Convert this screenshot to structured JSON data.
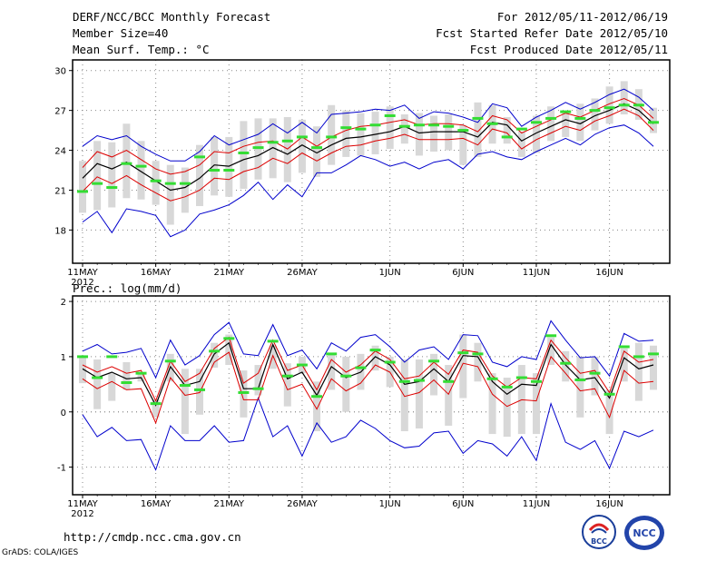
{
  "header": {
    "title": "DERF/NCC/BCC Monthly Forecast",
    "member_size": "Member Size=40",
    "variable": "Mean Surf. Temp.: °C",
    "period": "For 2012/05/11-2012/06/19",
    "fcst_started": "Fcst Started Refer Date 2012/05/10",
    "fcst_produced": "Fcst Produced Date 2012/05/11"
  },
  "footer": {
    "url": "http://cmdp.ncc.cma.gov.cn",
    "grads": "GrADS: COLA/IGES",
    "logo_bcc": "BCC",
    "logo_ncc": "NCC"
  },
  "colors": {
    "envelope": "#0000cc",
    "spread": "#dd0000",
    "mean": "#000000",
    "bar": "#d8d8d8",
    "obs": "#33dd33",
    "grid": "#888888"
  },
  "chart_data": [
    {
      "type": "line",
      "title": "Mean Surf. Temp.: °C",
      "ylabel": "°C",
      "ylim": [
        15.5,
        30.8
      ],
      "yticks": [
        18,
        21,
        24,
        27,
        30
      ],
      "xlim": [
        0,
        39
      ],
      "xticks": [
        {
          "day": 0,
          "label": "11MAY",
          "label2": "2012"
        },
        {
          "day": 5,
          "label": "16MAY"
        },
        {
          "day": 10,
          "label": "21MAY"
        },
        {
          "day": 15,
          "label": "26MAY"
        },
        {
          "day": 21,
          "label": "1JUN"
        },
        {
          "day": 26,
          "label": "6JUN"
        },
        {
          "day": 31,
          "label": "11JUN"
        },
        {
          "day": 36,
          "label": "16JUN"
        }
      ],
      "series": {
        "max": [
          24.3,
          25.1,
          24.8,
          25.1,
          24.3,
          23.7,
          23.2,
          23.2,
          23.9,
          25.1,
          24.4,
          24.8,
          25.2,
          26.0,
          25.3,
          26.1,
          25.3,
          26.7,
          26.8,
          26.9,
          27.1,
          27.0,
          27.4,
          26.4,
          26.9,
          26.8,
          26.5,
          26.1,
          27.5,
          27.2,
          25.8,
          26.5,
          27.0,
          27.6,
          27.1,
          27.6,
          28.2,
          28.6,
          28.0,
          27.0
        ],
        "p75": [
          22.7,
          23.9,
          23.5,
          24.0,
          23.3,
          22.6,
          22.2,
          22.4,
          22.9,
          23.9,
          23.8,
          24.3,
          24.6,
          24.7,
          24.1,
          25.0,
          24.3,
          25.0,
          25.5,
          25.8,
          25.9,
          26.1,
          26.3,
          25.9,
          26.0,
          26.0,
          25.9,
          25.4,
          26.6,
          26.3,
          25.3,
          25.8,
          26.3,
          26.8,
          26.5,
          27.0,
          27.5,
          27.9,
          27.4,
          26.4
        ],
        "mean": [
          21.9,
          23.0,
          22.6,
          23.1,
          22.4,
          21.7,
          21.0,
          21.2,
          21.9,
          22.9,
          22.8,
          23.3,
          23.6,
          24.2,
          23.7,
          24.4,
          23.8,
          24.4,
          24.9,
          25.0,
          25.2,
          25.4,
          25.8,
          25.3,
          25.4,
          25.4,
          25.4,
          25.0,
          26.1,
          25.9,
          24.7,
          25.3,
          25.8,
          26.3,
          26.0,
          26.6,
          27.0,
          27.5,
          27.0,
          26.0
        ],
        "p25": [
          20.9,
          22.0,
          21.5,
          22.1,
          21.4,
          20.8,
          20.2,
          20.5,
          21.0,
          21.9,
          21.8,
          22.4,
          22.7,
          23.4,
          23.0,
          23.8,
          23.2,
          23.8,
          24.3,
          24.4,
          24.7,
          24.9,
          25.2,
          24.8,
          24.8,
          24.8,
          24.9,
          24.4,
          25.6,
          25.3,
          24.1,
          24.8,
          25.3,
          25.8,
          25.5,
          26.2,
          26.6,
          27.1,
          26.6,
          25.5
        ],
        "min": [
          18.6,
          19.4,
          17.8,
          19.6,
          19.4,
          19.1,
          17.5,
          18.0,
          19.2,
          19.5,
          19.9,
          20.6,
          21.6,
          20.3,
          21.4,
          20.5,
          22.3,
          22.3,
          22.9,
          23.6,
          23.3,
          22.8,
          23.1,
          22.6,
          23.1,
          23.3,
          22.6,
          23.7,
          23.9,
          23.5,
          23.3,
          23.9,
          24.4,
          24.9,
          24.4,
          25.2,
          25.7,
          25.9,
          25.3,
          24.3
        ],
        "bar_low": [
          19.3,
          19.5,
          19.7,
          20.4,
          20.3,
          19.9,
          18.4,
          19.3,
          19.8,
          20.6,
          20.5,
          21.1,
          21.8,
          21.9,
          21.6,
          22.3,
          22.0,
          22.9,
          23.5,
          23.6,
          23.7,
          24.1,
          24.5,
          23.6,
          23.9,
          24.0,
          22.9,
          23.5,
          24.5,
          24.5,
          23.5,
          23.8,
          24.7,
          25.0,
          24.7,
          25.5,
          26.0,
          26.7,
          26.3,
          25.3
        ],
        "bar_high": [
          23.2,
          24.7,
          24.6,
          26.0,
          24.7,
          23.2,
          22.9,
          22.7,
          24.4,
          25.0,
          25.0,
          26.2,
          26.4,
          26.4,
          26.5,
          26.3,
          25.8,
          27.4,
          27.0,
          26.8,
          26.9,
          27.3,
          26.7,
          26.8,
          26.6,
          26.7,
          25.9,
          27.6,
          27.4,
          26.5,
          25.4,
          26.6,
          27.3,
          26.9,
          27.5,
          27.9,
          28.8,
          29.2,
          28.6,
          27.2
        ],
        "obs": [
          20.9,
          21.5,
          21.2,
          23.0,
          22.8,
          21.7,
          21.5,
          21.5,
          23.5,
          22.5,
          22.5,
          23.8,
          24.2,
          24.6,
          24.7,
          25.0,
          24.2,
          25.0,
          25.7,
          25.6,
          25.9,
          26.6,
          25.8,
          25.9,
          25.9,
          25.8,
          25.5,
          26.4,
          26.0,
          25.0,
          25.6,
          26.1,
          26.4,
          26.9,
          26.4,
          27.0,
          27.2,
          27.4,
          27.4,
          26.1
        ]
      }
    },
    {
      "type": "line",
      "title": "Prec.: log(mm/d)",
      "ylabel": "log(mm/d)",
      "ylim": [
        -1.5,
        2.1
      ],
      "yticks": [
        -1,
        0,
        1,
        2
      ],
      "xlim": [
        0,
        39
      ],
      "xticks": [
        {
          "day": 0,
          "label": "11MAY",
          "label2": "2012"
        },
        {
          "day": 5,
          "label": "16MAY"
        },
        {
          "day": 10,
          "label": "21MAY"
        },
        {
          "day": 15,
          "label": "26MAY"
        },
        {
          "day": 21,
          "label": "1JUN"
        },
        {
          "day": 26,
          "label": "6JUN"
        },
        {
          "day": 31,
          "label": "11JUN"
        },
        {
          "day": 36,
          "label": "16JUN"
        }
      ],
      "series": {
        "max": [
          1.1,
          1.22,
          1.05,
          1.08,
          1.15,
          0.62,
          1.3,
          0.85,
          1.02,
          1.4,
          1.62,
          1.05,
          1.02,
          1.58,
          1.02,
          1.12,
          0.78,
          1.25,
          1.1,
          1.35,
          1.4,
          1.18,
          0.9,
          1.12,
          1.18,
          0.95,
          1.4,
          1.38,
          0.9,
          0.82,
          1.0,
          0.95,
          1.65,
          1.3,
          0.98,
          1.0,
          0.65,
          1.42,
          1.28,
          1.3
        ],
        "p75": [
          0.85,
          0.72,
          0.82,
          0.7,
          0.75,
          0.2,
          0.92,
          0.55,
          0.7,
          1.15,
          1.35,
          0.52,
          0.7,
          1.3,
          0.75,
          0.85,
          0.4,
          0.95,
          0.72,
          0.85,
          1.1,
          0.95,
          0.6,
          0.65,
          0.9,
          0.68,
          1.12,
          1.08,
          0.65,
          0.45,
          0.62,
          0.6,
          1.3,
          0.98,
          0.7,
          0.75,
          0.35,
          1.1,
          0.9,
          0.95
        ],
        "mean": [
          0.78,
          0.62,
          0.72,
          0.6,
          0.62,
          0.12,
          0.82,
          0.48,
          0.55,
          1.05,
          1.25,
          0.42,
          0.42,
          1.22,
          0.6,
          0.72,
          0.3,
          0.82,
          0.62,
          0.72,
          1.0,
          0.85,
          0.5,
          0.55,
          0.78,
          0.55,
          1.02,
          1.0,
          0.55,
          0.32,
          0.5,
          0.48,
          1.22,
          0.85,
          0.58,
          0.62,
          0.25,
          0.98,
          0.78,
          0.85
        ],
        "p25": [
          0.6,
          0.42,
          0.55,
          0.4,
          0.42,
          -0.2,
          0.62,
          0.3,
          0.35,
          0.9,
          1.08,
          0.22,
          0.22,
          1.02,
          0.4,
          0.5,
          0.05,
          0.6,
          0.38,
          0.52,
          0.85,
          0.72,
          0.28,
          0.35,
          0.58,
          0.32,
          0.88,
          0.82,
          0.32,
          0.1,
          0.22,
          0.2,
          1.0,
          0.7,
          0.38,
          0.42,
          -0.1,
          0.75,
          0.52,
          0.55
        ],
        "min": [
          -0.05,
          -0.45,
          -0.28,
          -0.52,
          -0.5,
          -1.05,
          -0.25,
          -0.52,
          -0.52,
          -0.25,
          -0.55,
          -0.52,
          0.25,
          -0.45,
          -0.25,
          -0.8,
          -0.2,
          -0.55,
          -0.45,
          -0.15,
          -0.3,
          -0.52,
          -0.65,
          -0.62,
          -0.38,
          -0.35,
          -0.75,
          -0.52,
          -0.58,
          -0.8,
          -0.45,
          -0.88,
          0.15,
          -0.55,
          -0.68,
          -0.52,
          -1.02,
          -0.35,
          -0.45,
          -0.33
        ],
        "bar_low": [
          0.52,
          0.05,
          0.2,
          0.4,
          0.55,
          -0.1,
          0.55,
          -0.4,
          -0.05,
          0.8,
          0.85,
          -0.1,
          0.3,
          0.78,
          0.1,
          0.7,
          -0.35,
          0.4,
          0.0,
          0.4,
          0.75,
          0.45,
          -0.35,
          -0.3,
          0.3,
          -0.25,
          0.25,
          0.55,
          -0.4,
          -0.45,
          -0.4,
          -0.4,
          0.85,
          0.55,
          -0.1,
          0.3,
          -0.4,
          0.55,
          0.2,
          0.4
        ],
        "bar_high": [
          1.0,
          0.95,
          0.7,
          0.9,
          0.72,
          0.22,
          1.05,
          0.78,
          0.78,
          1.25,
          1.4,
          0.75,
          0.85,
          1.2,
          0.88,
          1.0,
          0.55,
          1.05,
          1.0,
          1.05,
          1.2,
          1.0,
          0.95,
          0.95,
          1.05,
          0.85,
          1.4,
          1.25,
          0.7,
          0.62,
          0.85,
          0.7,
          1.35,
          1.1,
          1.0,
          1.0,
          0.4,
          1.15,
          1.25,
          1.2
        ],
        "obs": [
          1.0,
          0.62,
          1.0,
          0.53,
          0.7,
          0.15,
          0.92,
          0.48,
          0.4,
          1.1,
          1.33,
          0.35,
          0.42,
          1.28,
          0.65,
          0.85,
          0.28,
          1.05,
          0.65,
          0.8,
          1.12,
          0.9,
          0.55,
          0.57,
          0.92,
          0.55,
          1.07,
          1.05,
          0.6,
          0.45,
          0.62,
          0.55,
          1.38,
          0.88,
          0.58,
          0.7,
          0.32,
          1.18,
          1.0,
          1.05
        ]
      }
    }
  ]
}
